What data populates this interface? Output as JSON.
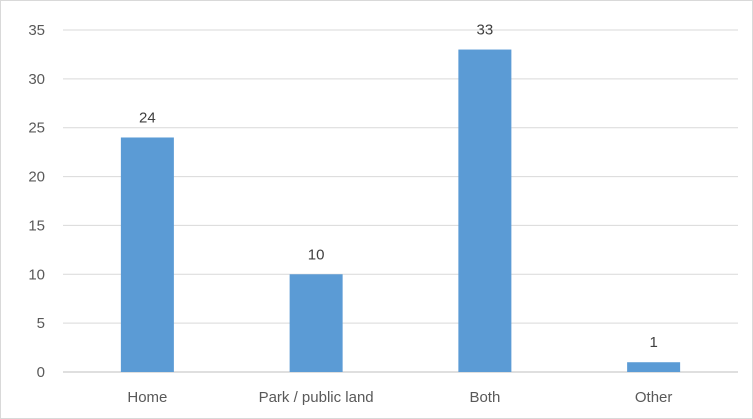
{
  "chart_data": {
    "type": "bar",
    "categories": [
      "Home",
      "Park / public land",
      "Both",
      "Other"
    ],
    "values": [
      24,
      10,
      33,
      1
    ],
    "title": "",
    "xlabel": "",
    "ylabel": "",
    "ylim": [
      0,
      35
    ],
    "yticks": [
      0,
      5,
      10,
      15,
      20,
      25,
      30,
      35
    ],
    "grid": true,
    "legend": "none",
    "data_labels": true,
    "colors": {
      "bar": "#5b9bd5",
      "grid": "#d9d9d9",
      "axis": "#bfbfbf"
    }
  }
}
